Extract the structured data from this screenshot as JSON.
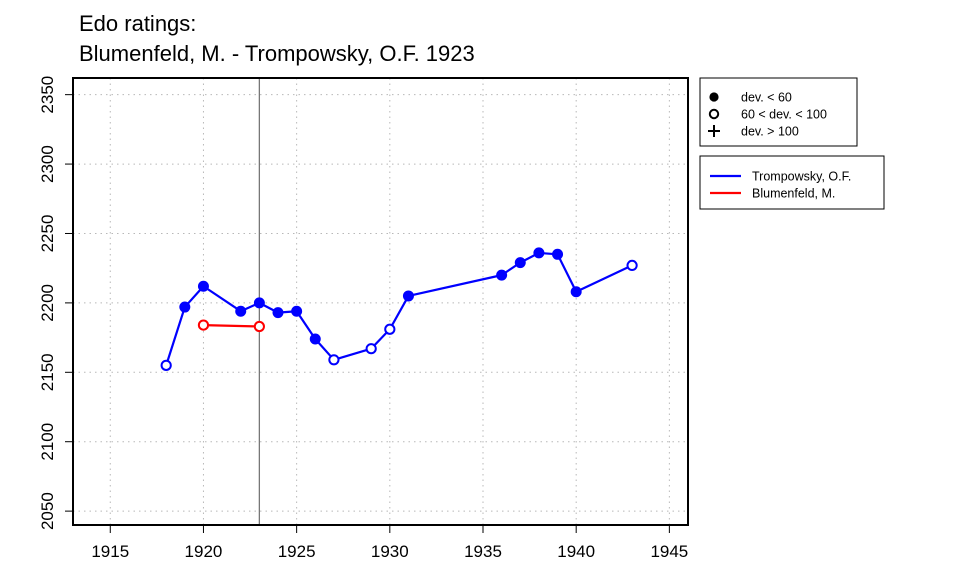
{
  "chart_data": {
    "type": "line",
    "title": "Edo ratings:",
    "subtitle": "Blumenfeld, M. - Trompowsky, O.F. 1923",
    "xlim": [
      1913,
      1946
    ],
    "ylim": [
      2040,
      2362
    ],
    "x_ticks": [
      1915,
      1920,
      1925,
      1930,
      1935,
      1940,
      1945
    ],
    "y_ticks": [
      2050,
      2100,
      2150,
      2200,
      2250,
      2300,
      2350
    ],
    "grid": true,
    "vertical_marker_x": 1923,
    "point_legend": {
      "placement": "top-right outside plot",
      "entries": [
        {
          "marker": "filled-circle",
          "label": "dev. < 60"
        },
        {
          "marker": "open-circle",
          "label": "60 < dev. < 100"
        },
        {
          "marker": "plus",
          "label": "dev. > 100"
        }
      ]
    },
    "series_legend": {
      "placement": "right outside plot, below point legend"
    },
    "series": [
      {
        "name": "Trompowsky, O.F.",
        "color": "#0000ff",
        "points": [
          {
            "x": 1918,
            "y": 2155,
            "marker": "open"
          },
          {
            "x": 1919,
            "y": 2197,
            "marker": "filled"
          },
          {
            "x": 1920,
            "y": 2212,
            "marker": "filled"
          },
          {
            "x": 1922,
            "y": 2194,
            "marker": "filled"
          },
          {
            "x": 1923,
            "y": 2200,
            "marker": "filled"
          },
          {
            "x": 1924,
            "y": 2193,
            "marker": "filled"
          },
          {
            "x": 1925,
            "y": 2194,
            "marker": "filled"
          },
          {
            "x": 1926,
            "y": 2174,
            "marker": "filled"
          },
          {
            "x": 1927,
            "y": 2159,
            "marker": "open"
          },
          {
            "x": 1929,
            "y": 2167,
            "marker": "open"
          },
          {
            "x": 1930,
            "y": 2181,
            "marker": "open"
          },
          {
            "x": 1931,
            "y": 2205,
            "marker": "filled"
          },
          {
            "x": 1936,
            "y": 2220,
            "marker": "filled"
          },
          {
            "x": 1937,
            "y": 2229,
            "marker": "filled"
          },
          {
            "x": 1938,
            "y": 2236,
            "marker": "filled"
          },
          {
            "x": 1939,
            "y": 2235,
            "marker": "filled"
          },
          {
            "x": 1940,
            "y": 2208,
            "marker": "filled"
          },
          {
            "x": 1943,
            "y": 2227,
            "marker": "open"
          }
        ]
      },
      {
        "name": "Blumenfeld, M.",
        "color": "#ff0000",
        "points": [
          {
            "x": 1920,
            "y": 2184,
            "marker": "open"
          },
          {
            "x": 1923,
            "y": 2183,
            "marker": "open"
          }
        ]
      }
    ]
  }
}
